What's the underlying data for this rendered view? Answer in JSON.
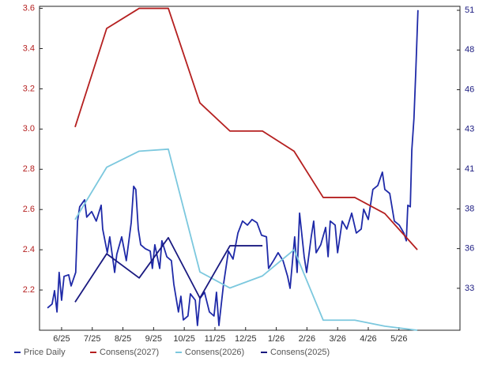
{
  "chart_data": {
    "type": "line",
    "xlim": [
      -0.72,
      12.99
    ],
    "xticks": [
      {
        "value": 0,
        "label": "6/25"
      },
      {
        "value": 1,
        "label": "7/25"
      },
      {
        "value": 2,
        "label": "8/25"
      },
      {
        "value": 3,
        "label": "9/25"
      },
      {
        "value": 4,
        "label": "10/25"
      },
      {
        "value": 5,
        "label": "11/25"
      },
      {
        "value": 6,
        "label": "12/25"
      },
      {
        "value": 7,
        "label": "1/26"
      },
      {
        "value": 8,
        "label": "2/26"
      },
      {
        "value": 9,
        "label": "3/26"
      },
      {
        "value": 10,
        "label": "4/26"
      },
      {
        "value": 11,
        "label": "5/26"
      }
    ],
    "ylim": [
      2.0,
      3.61
    ],
    "yticks": [
      2.2,
      2.4,
      2.6,
      2.8,
      {
        "value": 3,
        "label": "3.0"
      },
      3.2,
      3.4,
      3.6
    ],
    "y2lim": [
      30.76,
      51.15
    ],
    "y2ticks": [
      {
        "value": 33.4,
        "label": "33"
      },
      {
        "value": 35.9,
        "label": "36"
      },
      {
        "value": 38.4,
        "label": "38"
      },
      {
        "value": 40.9,
        "label": "41"
      },
      {
        "value": 43.4,
        "label": "43"
      },
      {
        "value": 45.9,
        "label": "46"
      },
      {
        "value": 48.4,
        "label": "48"
      },
      {
        "value": 50.9,
        "label": "51"
      }
    ],
    "legend": "bottom",
    "series": [
      {
        "name": "Price Daily",
        "color": "#1f2aa8",
        "axis": "y2",
        "x": [
          -0.46,
          -0.31,
          -0.23,
          -0.15,
          -0.08,
          0,
          0.08,
          0.23,
          0.31,
          0.46,
          0.52,
          0.59,
          0.75,
          0.82,
          0.98,
          1.13,
          1.29,
          1.34,
          1.49,
          1.57,
          1.73,
          1.8,
          1.96,
          2.11,
          2.27,
          2.35,
          2.42,
          2.5,
          2.58,
          2.73,
          2.89,
          2.96,
          3.04,
          3.2,
          3.27,
          3.43,
          3.58,
          3.66,
          3.81,
          3.89,
          3.97,
          4.12,
          4.2,
          4.36,
          4.43,
          4.51,
          4.66,
          4.82,
          4.97,
          5.05,
          5.13,
          5.28,
          5.44,
          5.59,
          5.75,
          5.9,
          6.06,
          6.21,
          6.37,
          6.52,
          6.68,
          6.75,
          6.91,
          7.06,
          7.22,
          7.37,
          7.45,
          7.6,
          7.68,
          7.76,
          7.91,
          7.99,
          8.14,
          8.22,
          8.3,
          8.45,
          8.61,
          8.69,
          8.76,
          8.92,
          9.0,
          9.15,
          9.3,
          9.46,
          9.61,
          9.77,
          9.85,
          10.0,
          10.15,
          10.31,
          10.46,
          10.54,
          10.7,
          10.85,
          11.01,
          11.16,
          11.24,
          11.29,
          11.37,
          11.42,
          11.49,
          11.55,
          11.62
        ],
        "values": [
          32.16,
          32.41,
          33.25,
          31.91,
          34.4,
          32.65,
          34.15,
          34.25,
          33.55,
          34.4,
          37.63,
          38.53,
          38.97,
          37.88,
          38.23,
          37.63,
          38.63,
          37.13,
          35.64,
          36.64,
          34.4,
          35.54,
          36.64,
          35.14,
          37.53,
          39.82,
          39.62,
          37.13,
          36.14,
          35.89,
          35.74,
          34.65,
          36.14,
          34.65,
          36.39,
          35.39,
          35.14,
          33.65,
          31.91,
          32.9,
          31.41,
          31.66,
          33.05,
          32.65,
          31.06,
          32.75,
          33.15,
          31.91,
          31.66,
          33.15,
          31.06,
          33.65,
          35.74,
          35.24,
          36.88,
          37.63,
          37.38,
          37.73,
          37.53,
          36.74,
          36.64,
          34.65,
          35.14,
          35.64,
          35.14,
          34.15,
          33.4,
          36.64,
          34.4,
          38.13,
          35.39,
          34.4,
          36.64,
          37.63,
          35.64,
          36.14,
          37.23,
          35.39,
          37.63,
          37.38,
          35.64,
          37.63,
          37.13,
          38.13,
          36.88,
          37.13,
          38.38,
          37.73,
          39.62,
          39.87,
          40.71,
          39.62,
          39.37,
          37.63,
          37.38,
          36.88,
          36.39,
          38.63,
          38.53,
          42.11,
          44.1,
          47.08,
          50.91
        ]
      },
      {
        "name": "Consens(2027)",
        "color": "#b52020",
        "x": [
          0.44,
          1.47,
          2.53,
          3.48,
          4.51,
          5.49,
          6.55,
          7.58,
          8.53,
          9.56,
          10.54,
          11.6
        ],
        "values": [
          3.01,
          3.5,
          3.6,
          3.6,
          3.13,
          2.99,
          2.99,
          2.89,
          2.66,
          2.66,
          2.58,
          2.4
        ]
      },
      {
        "name": "Consens(2026)",
        "color": "#7cc8de",
        "x": [
          0.44,
          1.47,
          2.53,
          3.48,
          4.51,
          5.49,
          6.55,
          7.58,
          8.53,
          9.56,
          10.54,
          11.6
        ],
        "values": [
          2.55,
          2.81,
          2.89,
          2.9,
          2.29,
          2.21,
          2.27,
          2.4,
          2.05,
          2.05,
          2.02,
          2.0
        ]
      },
      {
        "name": "Consens(2025)",
        "color": "#1a1a80",
        "x": [
          0.44,
          1.47,
          2.53,
          3.48,
          4.51,
          5.49,
          6.55
        ],
        "values": [
          2.14,
          2.38,
          2.26,
          2.46,
          2.16,
          2.42,
          2.42
        ]
      }
    ]
  }
}
